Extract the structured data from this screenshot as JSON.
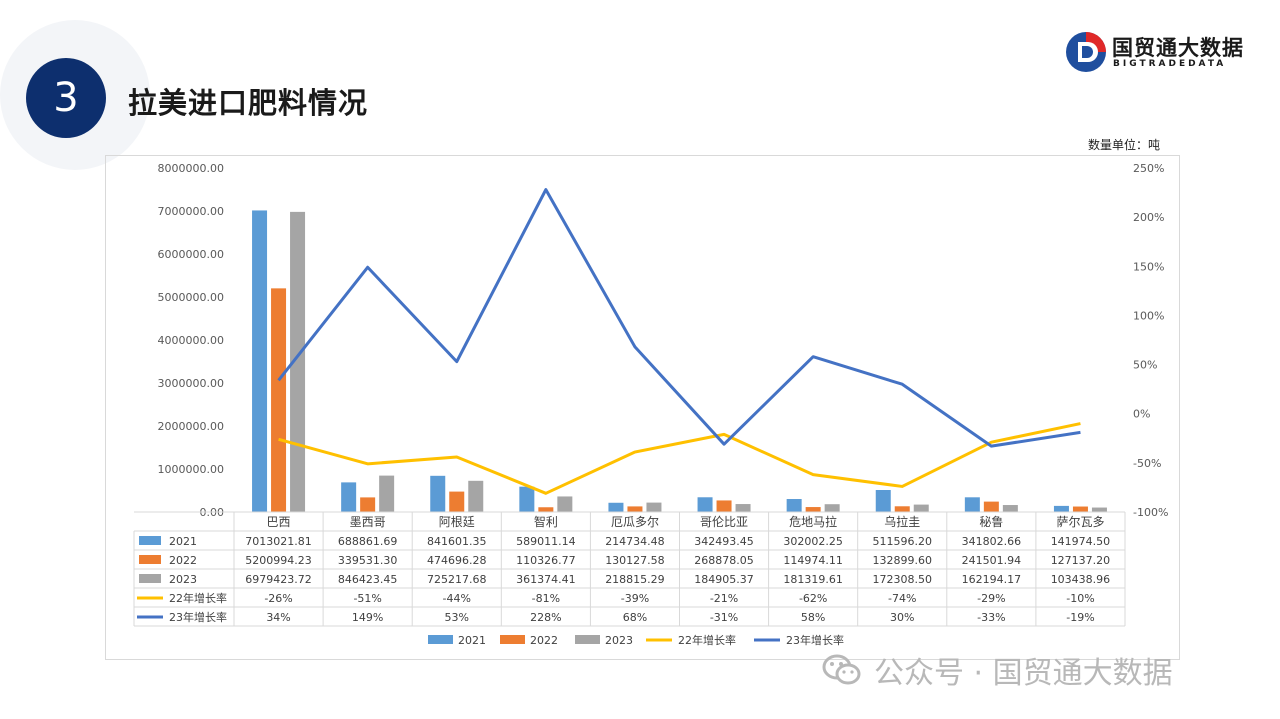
{
  "header": {
    "section_number": "3",
    "title": "拉美进口肥料情况",
    "logo_text": "国贸通大数据",
    "logo_sub": "BIGTRADEDATA",
    "unit_label": "数量单位：吨"
  },
  "watermark": {
    "text": "公众号 · 国贸通大数据"
  },
  "colors": {
    "2021": "#5b9bd5",
    "2022": "#ed7d31",
    "2023": "#a5a5a5",
    "g22": "#ffc000",
    "g23": "#4472c4",
    "title_circle": "#0d2f6e"
  },
  "chart_data": {
    "type": "bar",
    "categories": [
      "巴西",
      "墨西哥",
      "阿根廷",
      "智利",
      "厄瓜多尔",
      "哥伦比亚",
      "危地马拉",
      "乌拉圭",
      "秘鲁",
      "萨尔瓦多"
    ],
    "series": [
      {
        "name": "2021",
        "type": "bar",
        "values": [
          7013021.81,
          688861.69,
          841601.35,
          589011.14,
          214734.48,
          342493.45,
          302002.25,
          511596.2,
          341802.66,
          141974.5
        ],
        "labels": [
          "7013021.81",
          "688861.69",
          "841601.35",
          "589011.14",
          "214734.48",
          "342493.45",
          "302002.25",
          "511596.20",
          "341802.66",
          "141974.50"
        ]
      },
      {
        "name": "2022",
        "type": "bar",
        "values": [
          5200994.23,
          339531.3,
          474696.28,
          110326.77,
          130127.58,
          268878.05,
          114974.11,
          132899.6,
          241501.94,
          127137.2
        ],
        "labels": [
          "5200994.23",
          "339531.30",
          "474696.28",
          "110326.77",
          "130127.58",
          "268878.05",
          "114974.11",
          "132899.60",
          "241501.94",
          "127137.20"
        ]
      },
      {
        "name": "2023",
        "type": "bar",
        "values": [
          6979423.72,
          846423.45,
          725217.68,
          361374.41,
          218815.29,
          184905.37,
          181319.61,
          172308.5,
          162194.17,
          103438.96
        ],
        "labels": [
          "6979423.72",
          "846423.45",
          "725217.68",
          "361374.41",
          "218815.29",
          "184905.37",
          "181319.61",
          "172308.50",
          "162194.17",
          "103438.96"
        ]
      },
      {
        "name": "22年增长率",
        "type": "line",
        "axis": "right",
        "values": [
          -26,
          -51,
          -44,
          -81,
          -39,
          -21,
          -62,
          -74,
          -29,
          -10
        ],
        "labels": [
          "-26%",
          "-51%",
          "-44%",
          "-81%",
          "-39%",
          "-21%",
          "-62%",
          "-74%",
          "-29%",
          "-10%"
        ]
      },
      {
        "name": "23年增长率",
        "type": "line",
        "axis": "right",
        "values": [
          34,
          149,
          53,
          228,
          68,
          -31,
          58,
          30,
          -33,
          -19
        ],
        "labels": [
          "34%",
          "149%",
          "53%",
          "228%",
          "68%",
          "-31%",
          "58%",
          "30%",
          "-33%",
          "-19%"
        ]
      }
    ],
    "y_left": {
      "lim": [
        0,
        8000000
      ],
      "ticks": [
        "0.00",
        "1000000.00",
        "2000000.00",
        "3000000.00",
        "4000000.00",
        "5000000.00",
        "6000000.00",
        "7000000.00",
        "8000000.00"
      ]
    },
    "y_right": {
      "lim": [
        -100,
        250
      ],
      "ticks": [
        "-100%",
        "-50%",
        "0%",
        "50%",
        "100%",
        "150%",
        "200%",
        "250%"
      ]
    },
    "legend_position": "bottom",
    "grid": false
  }
}
